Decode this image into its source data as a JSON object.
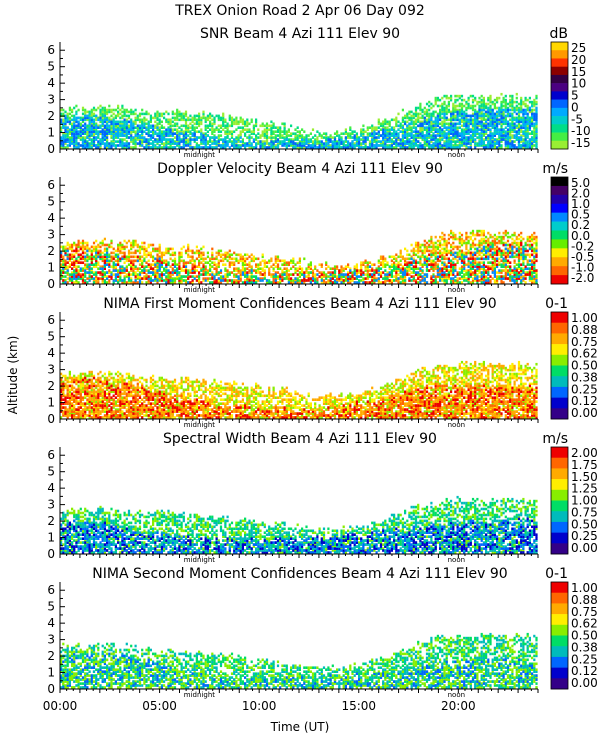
{
  "figure": {
    "title": "TREX Onion Road    2 Apr 06 Day 092",
    "ylabel": "Altitude (km)",
    "xlabel": "Time (UT)",
    "x_ticks": [
      "00:00",
      "05:00",
      "10:00",
      "15:00",
      "20:00"
    ],
    "x_tick_values": [
      0,
      5,
      10,
      15,
      20
    ],
    "marker_labels": {
      "midnight": "midnight",
      "noon": "noon"
    },
    "marker_hours": {
      "midnight": 7,
      "noon": 19.9
    }
  },
  "chart_data": [
    {
      "type": "heatmap",
      "title": "SNR Beam 4 Azi 111 Elev 90",
      "unit": "dB",
      "xlabel": "Time (UT)",
      "ylabel": "Altitude (km)",
      "xlim": [
        0,
        24
      ],
      "ylim": [
        0,
        6.5
      ],
      "y_ticks": [
        0,
        1,
        2,
        3,
        4,
        5,
        6
      ],
      "colorbar_ticks": [
        "25",
        "20",
        "15",
        "10",
        "5",
        "0",
        "-5",
        "-10",
        "-15"
      ],
      "colorbar_colors": [
        "#ffd700",
        "#ff9900",
        "#ff3300",
        "#8b0000",
        "#330044",
        "#4b0082",
        "#0000cd",
        "#0066ff",
        "#00aaff",
        "#00cccc",
        "#00dd88",
        "#44ee44",
        "#99ee33"
      ],
      "layers": [
        {
          "top": [
            2.5,
            2.5,
            2.6,
            2.5,
            2.3,
            2.2,
            2.2,
            2.1,
            2.0,
            1.8,
            1.6,
            1.4,
            1.2,
            1.0,
            1.0,
            1.2,
            1.6,
            2.1,
            2.6,
            3.1,
            3.2,
            3.2,
            3.2,
            3.2,
            3.2
          ],
          "colors": [
            "#44ee44",
            "#99ee33",
            "#00dd88"
          ],
          "density": 0.6
        },
        {
          "top": [
            2.0,
            2.0,
            1.9,
            1.7,
            1.5,
            1.3,
            1.0,
            0.8,
            0.6,
            0.5,
            0.5,
            0.4,
            0.5,
            0.5,
            0.6,
            0.8,
            1.0,
            1.3,
            1.6,
            2.0,
            2.2,
            2.4,
            2.5,
            2.5,
            2.5
          ],
          "colors": [
            "#0066ff",
            "#00aaff",
            "#00cccc"
          ],
          "density": 0.55
        }
      ]
    },
    {
      "type": "heatmap",
      "title": "Doppler Velocity Beam 4 Azi 111 Elev 90",
      "unit": "m/s",
      "xlabel": "Time (UT)",
      "ylabel": "Altitude (km)",
      "xlim": [
        0,
        24
      ],
      "ylim": [
        0,
        6.5
      ],
      "y_ticks": [
        0,
        1,
        2,
        3,
        4,
        5,
        6
      ],
      "colorbar_ticks": [
        "5.0",
        "2.0",
        "1.0",
        "0.5",
        "0.2",
        "0.0",
        "-0.2",
        "-0.5",
        "-1.0",
        "-2.0"
      ],
      "colorbar_colors": [
        "#000000",
        "#440066",
        "#2200aa",
        "#0000ff",
        "#0088ff",
        "#00cccc",
        "#00dd66",
        "#66ee00",
        "#ffee00",
        "#ffaa00",
        "#ff6600",
        "#ee0000"
      ],
      "layers": [
        {
          "top": [
            2.5,
            2.6,
            2.6,
            2.5,
            2.4,
            2.3,
            2.2,
            2.1,
            2.0,
            1.8,
            1.7,
            1.5,
            1.4,
            1.2,
            1.1,
            1.2,
            1.5,
            2.0,
            2.5,
            3.0,
            3.1,
            3.2,
            3.1,
            3.0,
            3.0
          ],
          "colors": [
            "#66ee00",
            "#ffee00",
            "#ffaa00",
            "#ff6600"
          ],
          "density": 0.55
        },
        {
          "top": [
            2.2,
            2.2,
            2.0,
            1.8,
            1.6,
            1.4,
            1.2,
            1.0,
            0.8,
            0.6,
            0.6,
            0.5,
            0.5,
            0.6,
            0.7,
            0.8,
            1.0,
            1.2,
            1.5,
            1.8,
            2.0,
            2.2,
            2.4,
            2.4,
            2.4
          ],
          "colors": [
            "#ee0000",
            "#00dd66",
            "#0088ff"
          ],
          "density": 0.35
        }
      ]
    },
    {
      "type": "heatmap",
      "title": "NIMA First Moment Confidences Beam 4 Azi 111 Elev 90",
      "unit": "0-1",
      "xlabel": "Time (UT)",
      "ylabel": "Altitude (km)",
      "xlim": [
        0,
        24
      ],
      "ylim": [
        0,
        6.5
      ],
      "y_ticks": [
        0,
        1,
        2,
        3,
        4,
        5,
        6
      ],
      "colorbar_ticks": [
        "1.00",
        "0.88",
        "0.75",
        "0.62",
        "0.50",
        "0.38",
        "0.25",
        "0.12",
        "0.00"
      ],
      "colorbar_colors": [
        "#ee0000",
        "#ff6600",
        "#ffaa00",
        "#ffee00",
        "#88ee00",
        "#00dd66",
        "#00bbbb",
        "#0066ff",
        "#0000cc",
        "#330088"
      ],
      "layers": [
        {
          "top": [
            2.7,
            2.7,
            2.8,
            2.7,
            2.6,
            2.5,
            2.4,
            2.3,
            2.2,
            2.1,
            1.9,
            1.8,
            1.6,
            1.4,
            1.4,
            1.5,
            1.9,
            2.4,
            2.9,
            3.2,
            3.3,
            3.3,
            3.3,
            3.3,
            3.3
          ],
          "colors": [
            "#ffee00",
            "#88ee00",
            "#ffaa00"
          ],
          "density": 0.6
        },
        {
          "top": [
            2.4,
            2.4,
            2.3,
            2.1,
            1.9,
            1.6,
            1.3,
            1.0,
            0.8,
            0.7,
            0.6,
            0.6,
            0.5,
            0.6,
            0.7,
            0.9,
            1.2,
            1.5,
            1.8,
            2.0,
            2.0,
            2.0,
            1.9,
            1.9,
            1.9
          ],
          "colors": [
            "#ee0000",
            "#ff6600",
            "#ffaa00"
          ],
          "density": 0.55
        }
      ]
    },
    {
      "type": "heatmap",
      "title": "Spectral Width Beam 4 Azi 111 Elev 90",
      "unit": "m/s",
      "xlabel": "Time (UT)",
      "ylabel": "Altitude (km)",
      "xlim": [
        0,
        24
      ],
      "ylim": [
        0,
        6.5
      ],
      "y_ticks": [
        0,
        1,
        2,
        3,
        4,
        5,
        6
      ],
      "colorbar_ticks": [
        "2.00",
        "1.75",
        "1.50",
        "1.25",
        "1.00",
        "0.75",
        "0.50",
        "0.25",
        "0.00"
      ],
      "colorbar_colors": [
        "#ee0000",
        "#ff6600",
        "#ffaa00",
        "#ffee00",
        "#88ee00",
        "#00dd66",
        "#00bbbb",
        "#0066ff",
        "#0000cc",
        "#330088"
      ],
      "layers": [
        {
          "top": [
            2.6,
            2.6,
            2.7,
            2.6,
            2.5,
            2.5,
            2.4,
            2.3,
            2.2,
            2.0,
            1.9,
            1.8,
            1.6,
            1.5,
            1.5,
            1.6,
            1.9,
            2.4,
            2.9,
            3.2,
            3.3,
            3.3,
            3.3,
            3.3,
            3.3
          ],
          "colors": [
            "#00dd66",
            "#00bbbb",
            "#88ee00"
          ],
          "density": 0.55
        },
        {
          "top": [
            1.9,
            1.9,
            1.8,
            1.6,
            1.4,
            1.2,
            1.0,
            0.9,
            0.8,
            0.8,
            0.8,
            0.9,
            0.9,
            1.0,
            1.0,
            1.1,
            1.3,
            1.5,
            1.6,
            1.8,
            1.9,
            2.0,
            2.0,
            2.0,
            2.0
          ],
          "colors": [
            "#0066ff",
            "#0000cc",
            "#00bbbb"
          ],
          "density": 0.5
        }
      ]
    },
    {
      "type": "heatmap",
      "title": "NIMA Second Moment Confidences Beam 4 Azi 111 Elev 90",
      "unit": "0-1",
      "xlabel": "Time (UT)",
      "ylabel": "Altitude (km)",
      "xlim": [
        0,
        24
      ],
      "ylim": [
        0,
        6.5
      ],
      "y_ticks": [
        0,
        1,
        2,
        3,
        4,
        5,
        6
      ],
      "colorbar_ticks": [
        "1.00",
        "0.88",
        "0.75",
        "0.62",
        "0.50",
        "0.38",
        "0.25",
        "0.12",
        "0.00"
      ],
      "colorbar_colors": [
        "#ee0000",
        "#ff6600",
        "#ffaa00",
        "#ffee00",
        "#88ee00",
        "#00dd66",
        "#00bbbb",
        "#0066ff",
        "#0000cc",
        "#330088"
      ],
      "layers": [
        {
          "top": [
            2.6,
            2.6,
            2.7,
            2.6,
            2.4,
            2.3,
            2.2,
            2.1,
            2.0,
            1.9,
            1.7,
            1.5,
            1.4,
            1.3,
            1.3,
            1.4,
            1.8,
            2.3,
            2.8,
            3.1,
            3.2,
            3.2,
            3.2,
            3.2,
            3.2
          ],
          "colors": [
            "#88ee00",
            "#00dd66",
            "#00bbbb"
          ],
          "density": 0.55
        },
        {
          "top": [
            2.2,
            2.2,
            2.1,
            1.9,
            1.7,
            1.5,
            1.2,
            1.0,
            0.8,
            0.7,
            0.6,
            0.6,
            0.6,
            0.6,
            0.7,
            0.8,
            1.0,
            1.2,
            1.5,
            1.7,
            1.8,
            1.8,
            1.7,
            1.7,
            1.7
          ],
          "colors": [
            "#00bbbb",
            "#0066ff",
            "#88ee00"
          ],
          "density": 0.35
        }
      ]
    }
  ]
}
